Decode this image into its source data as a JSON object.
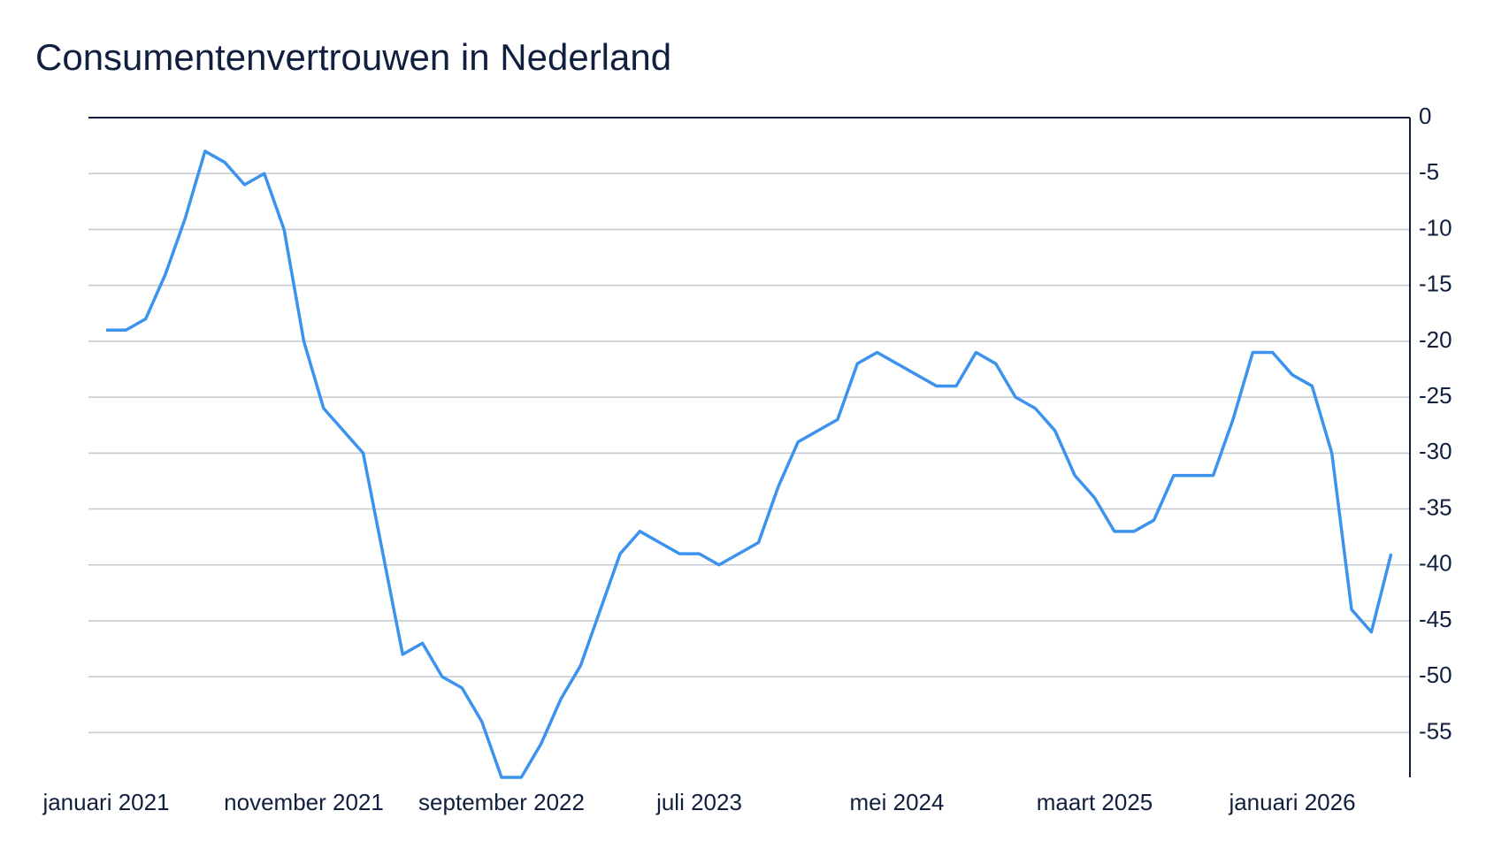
{
  "chart_data": {
    "type": "line",
    "title": "Consumentenvertrouwen in Nederland",
    "categories": [
      "januari 2021",
      null,
      null,
      null,
      null,
      null,
      null,
      null,
      null,
      null,
      "november 2021",
      null,
      null,
      null,
      null,
      null,
      null,
      null,
      null,
      null,
      "september 2022",
      null,
      null,
      null,
      null,
      null,
      null,
      null,
      null,
      null,
      "juli 2023",
      null,
      null,
      null,
      null,
      null,
      null,
      null,
      null,
      null,
      "mei 2024",
      null,
      null,
      null,
      null,
      null,
      null,
      null,
      null,
      null,
      "maart 2025",
      null,
      null,
      null,
      null,
      null,
      null,
      null,
      null,
      null,
      "januari 2026",
      null,
      null,
      null,
      null,
      null
    ],
    "series": [
      {
        "name": "Consumentenvertrouwen",
        "color": "#3b93ee",
        "values": [
          -19,
          -19,
          -18,
          -14,
          -9,
          -3,
          -4,
          -6,
          -5,
          -10,
          -20,
          -26,
          -28,
          -30,
          -39,
          -48,
          -47,
          -50,
          -51,
          -54,
          -59,
          -59,
          -56,
          -52,
          -49,
          -44,
          -39,
          -37,
          -38,
          -39,
          -39,
          -40,
          -39,
          -38,
          -33,
          -29,
          -28,
          -27,
          -22,
          -21,
          -22,
          -23,
          -24,
          -24,
          -21,
          -22,
          -25,
          -26,
          -28,
          -32,
          -34,
          -37,
          -37,
          -36,
          -32,
          -32,
          -32,
          -27,
          -21,
          -21,
          -23,
          -24,
          -30,
          -44,
          -46,
          -39
        ]
      }
    ],
    "ylim": [
      -59,
      0
    ],
    "yticks": [
      0,
      -5,
      -10,
      -15,
      -20,
      -25,
      -30,
      -35,
      -40,
      -45,
      -50,
      -55
    ],
    "grid": true,
    "y_axis_side": "right"
  }
}
